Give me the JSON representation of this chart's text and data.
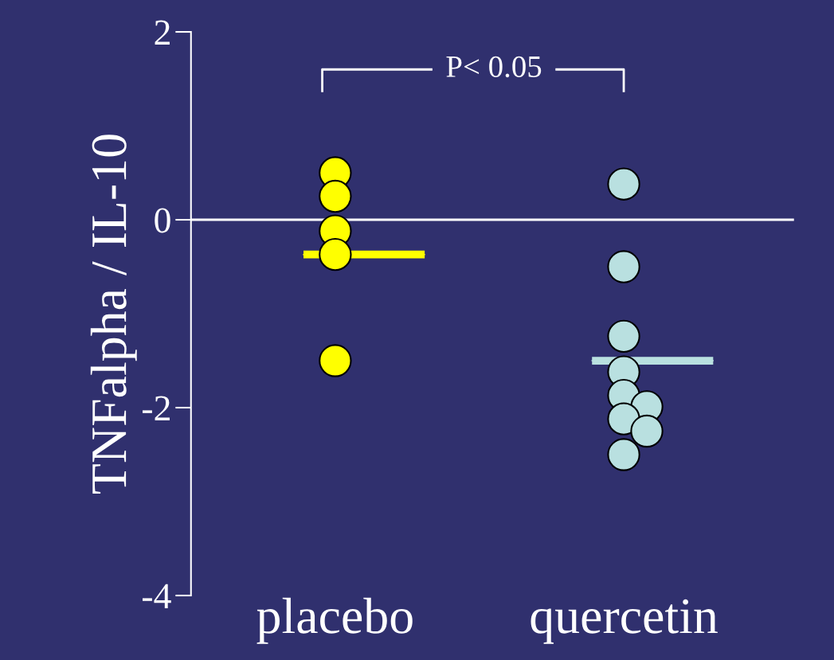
{
  "chart_data": {
    "type": "scatter",
    "ylabel": "TNFalpha / IL-10",
    "categories": [
      "placebo",
      "quercetin"
    ],
    "series": [
      {
        "marker": "circle",
        "color": "#ffff00",
        "x": [
          "placebo",
          "placebo",
          "placebo",
          "placebo",
          "placebo"
        ],
        "values": [
          0.5,
          0.25,
          -0.12,
          -0.37,
          -1.5
        ]
      },
      {
        "marker": "circle",
        "color": "#b9e0e0",
        "x": [
          "quercetin",
          "quercetin",
          "quercetin",
          "quercetin",
          "quercetin",
          "quercetin",
          "quercetin",
          "quercetin",
          "quercetin"
        ],
        "values": [
          0.38,
          -0.5,
          -1.24,
          -1.62,
          -1.87,
          -1.99,
          -2.12,
          -2.25,
          -2.5
        ]
      },
      {
        "type": "box",
        "colors": [
          "#ffff00",
          "#b9e0e0"
        ],
        "boxes": [
          {
            "low": -0.37,
            "q1": -0.37,
            "median": -0.37,
            "q3": -0.37,
            "high": -0.37
          },
          {
            "low": -1.5,
            "q1": -1.5,
            "median": -1.5,
            "q3": -1.5,
            "high": -1.5
          }
        ]
      }
    ],
    "ylim": [
      -4,
      2
    ],
    "yticks": [
      2,
      0,
      -2,
      -4
    ],
    "ref_lines": [
      {
        "axis": "y",
        "value": 0,
        "color": "#ffffff"
      }
    ],
    "annotations": [
      "P< 0.05"
    ]
  }
}
